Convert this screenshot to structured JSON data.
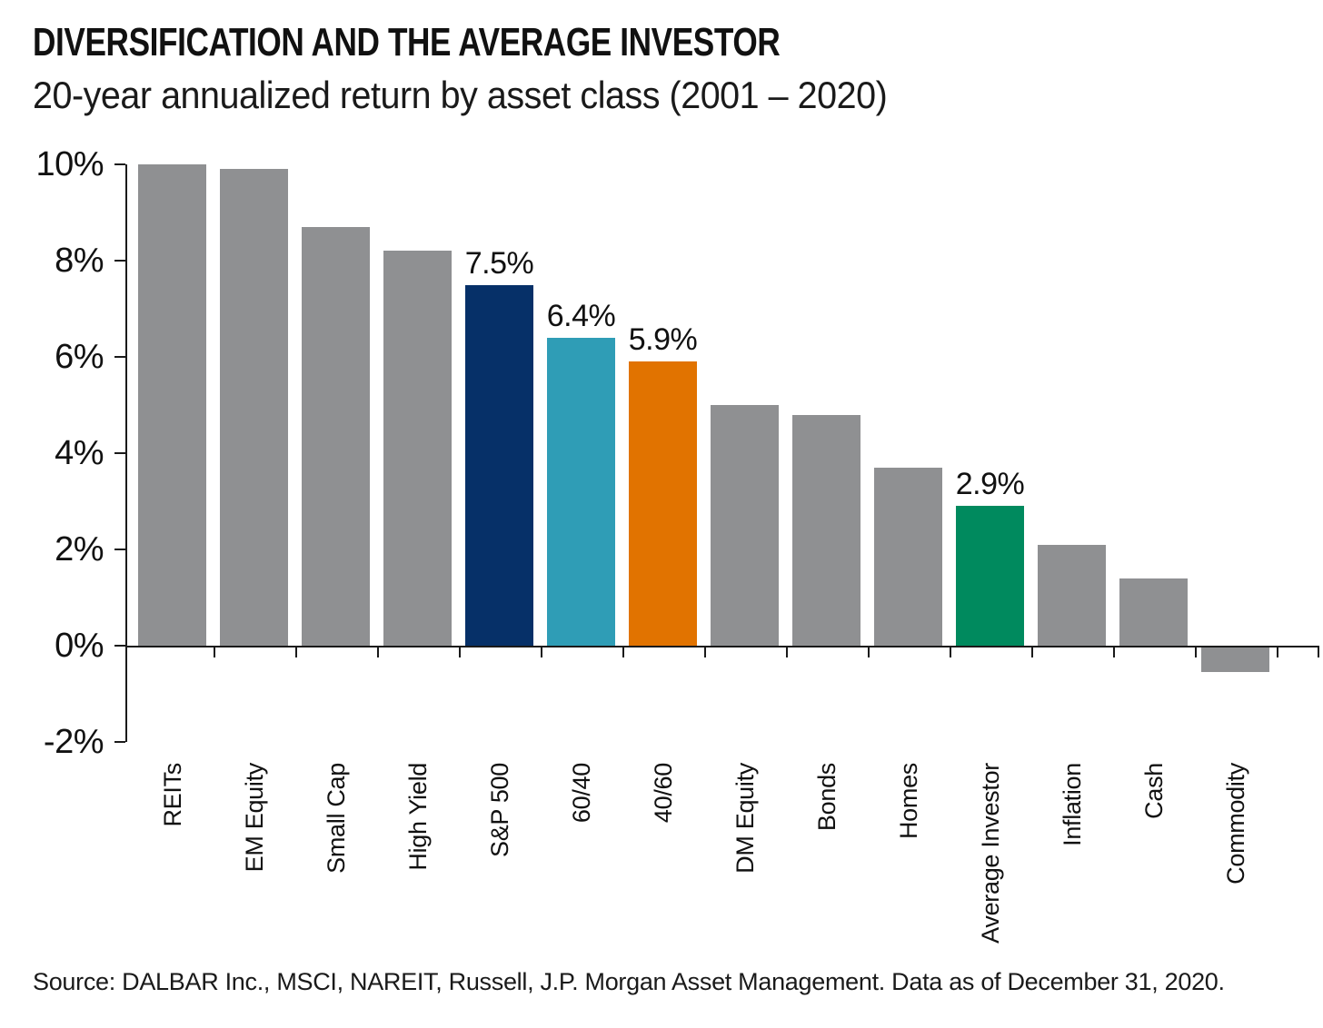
{
  "header": {
    "title": "DIVERSIFICATION AND THE AVERAGE INVESTOR",
    "subtitle": "20-year annualized return by asset class (2001 – 2020)"
  },
  "footer": {
    "source": "Source: DALBAR Inc., MSCI, NAREIT, Russell, J.P. Morgan Asset Management. Data as of December 31, 2020."
  },
  "chart_data": {
    "type": "bar",
    "title": "DIVERSIFICATION AND THE AVERAGE INVESTOR",
    "subtitle": "20-year annualized return by asset class (2001 – 2020)",
    "categories": [
      "REITs",
      "EM Equity",
      "Small Cap",
      "High Yield",
      "S&P 500",
      "60/40",
      "40/60",
      "DM Equity",
      "Bonds",
      "Homes",
      "Average Investor",
      "Inflation",
      "Cash",
      "Commodity"
    ],
    "values": [
      10.0,
      9.9,
      8.7,
      8.2,
      7.5,
      6.4,
      5.9,
      5.0,
      4.8,
      3.7,
      2.9,
      2.1,
      1.4,
      -0.5
    ],
    "data_labels": [
      "",
      "",
      "",
      "",
      "7.5%",
      "6.4%",
      "5.9%",
      "",
      "",
      "",
      "2.9%",
      "",
      "",
      ""
    ],
    "bar_colors": [
      "#8f9092",
      "#8f9092",
      "#8f9092",
      "#8f9092",
      "#063068",
      "#2f9db6",
      "#e17300",
      "#8f9092",
      "#8f9092",
      "#8f9092",
      "#008a5e",
      "#8f9092",
      "#8f9092",
      "#8f9092"
    ],
    "highlight_colors": {
      "default_gray": "#8f9092",
      "sp500_navy": "#063068",
      "mix_6040_teal": "#2f9db6",
      "mix_4060_orange": "#e17300",
      "average_investor_green": "#008a5e"
    },
    "axis_color": "#1a1a1a",
    "y_tick_labels": [
      "10%",
      "8%",
      "6%",
      "4%",
      "2%",
      "0%",
      "-2%"
    ],
    "y_tick_values": [
      10,
      8,
      6,
      4,
      2,
      0,
      -2
    ],
    "ylim": [
      -2,
      10
    ],
    "grid": false,
    "legend": "none",
    "ylabel": "",
    "xlabel": ""
  }
}
